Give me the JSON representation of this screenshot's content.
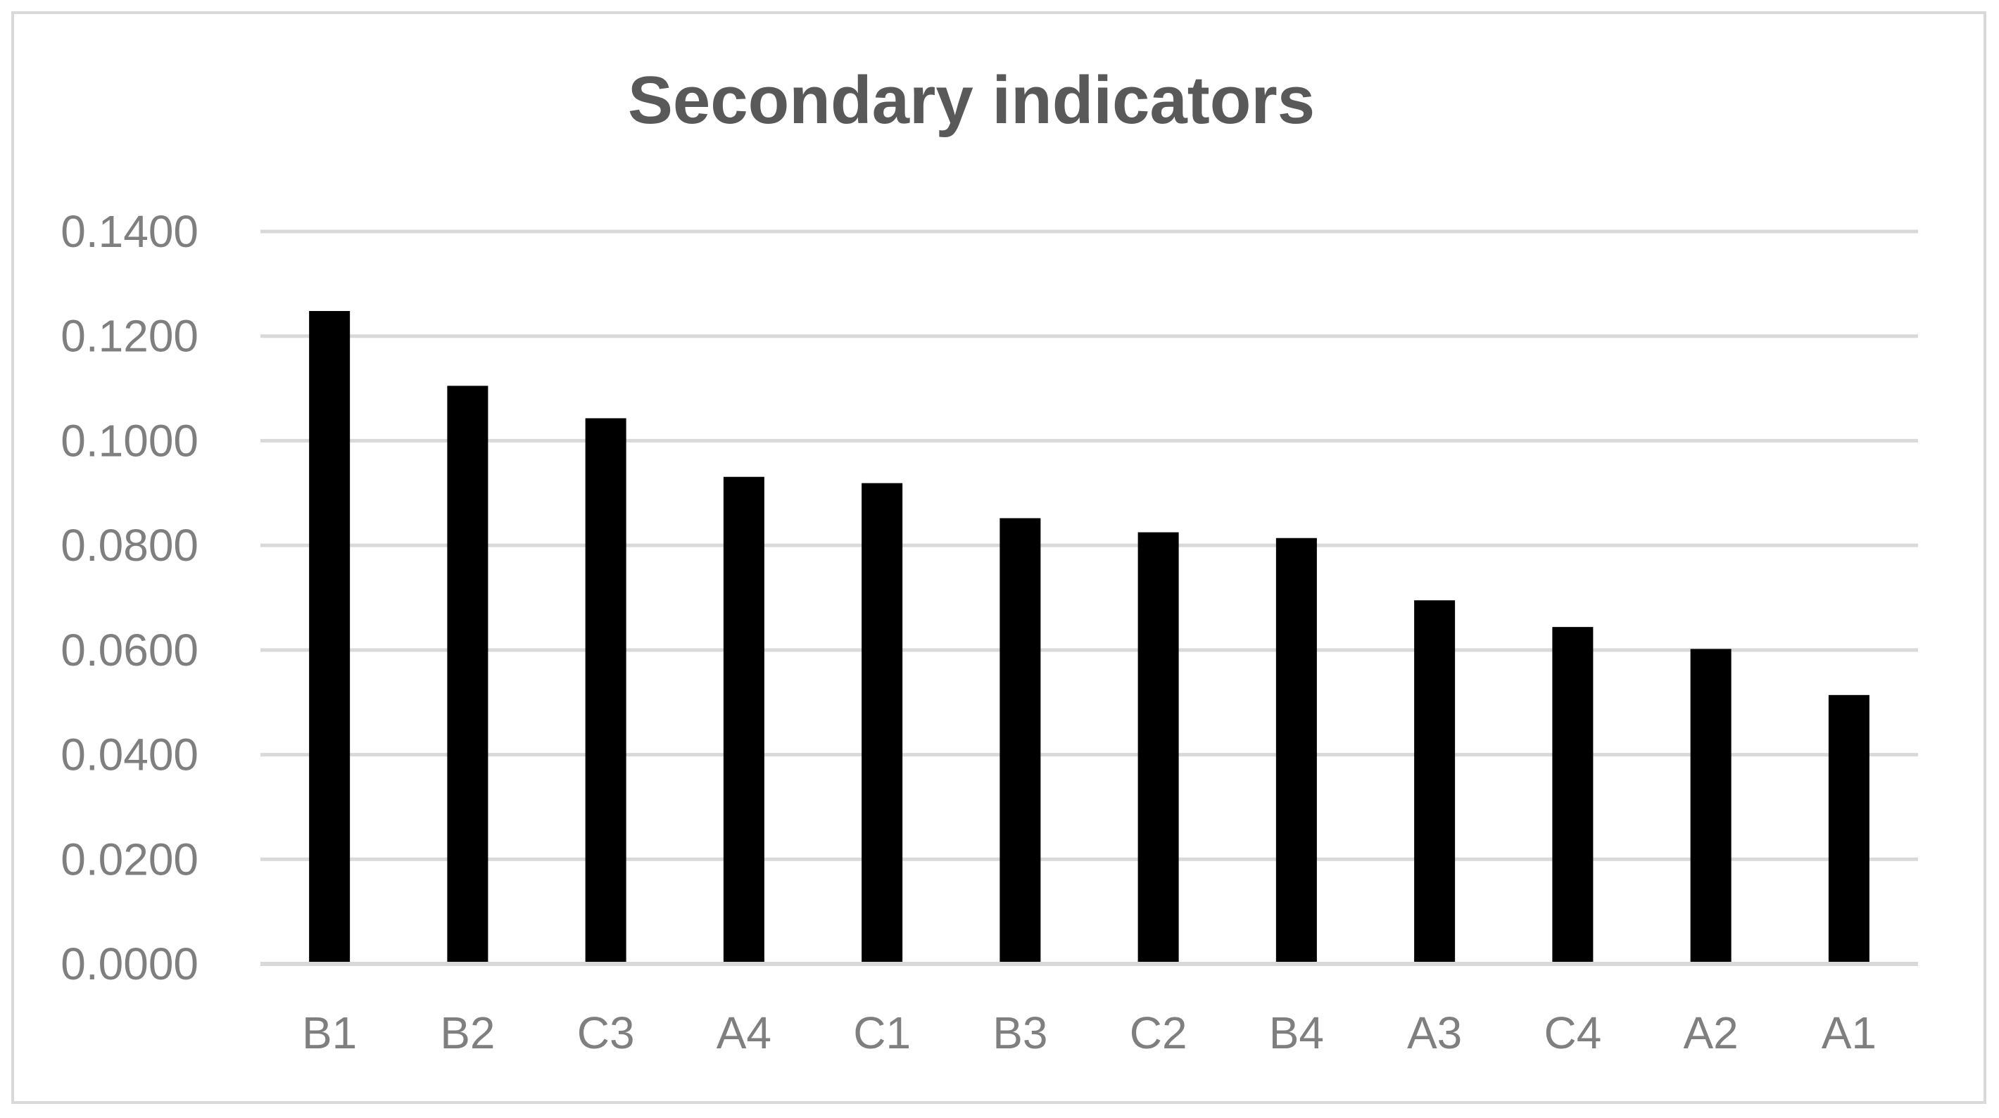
{
  "chart_data": {
    "type": "bar",
    "title": "Secondary indicators",
    "xlabel": "",
    "ylabel": "",
    "categories": [
      "B1",
      "B2",
      "C3",
      "A4",
      "C1",
      "B3",
      "C2",
      "B4",
      "A3",
      "C4",
      "A2",
      "A1"
    ],
    "values": [
      0.1248,
      0.1105,
      0.1043,
      0.0931,
      0.0919,
      0.0852,
      0.0825,
      0.0814,
      0.0695,
      0.0644,
      0.0602,
      0.0514
    ],
    "ylim": [
      0,
      0.14
    ],
    "yticks": [
      "0.0000",
      "0.0200",
      "0.0400",
      "0.0600",
      "0.0800",
      "0.1000",
      "0.1200",
      "0.1400"
    ],
    "grid": true,
    "legend": "none",
    "colors": {
      "bar": "#000000",
      "grid": "#d9d9d9",
      "axis": "#d9d9d9",
      "title": "#595959",
      "tick_labels": "#7f7f7f",
      "frame": "#d9d9d9"
    }
  }
}
